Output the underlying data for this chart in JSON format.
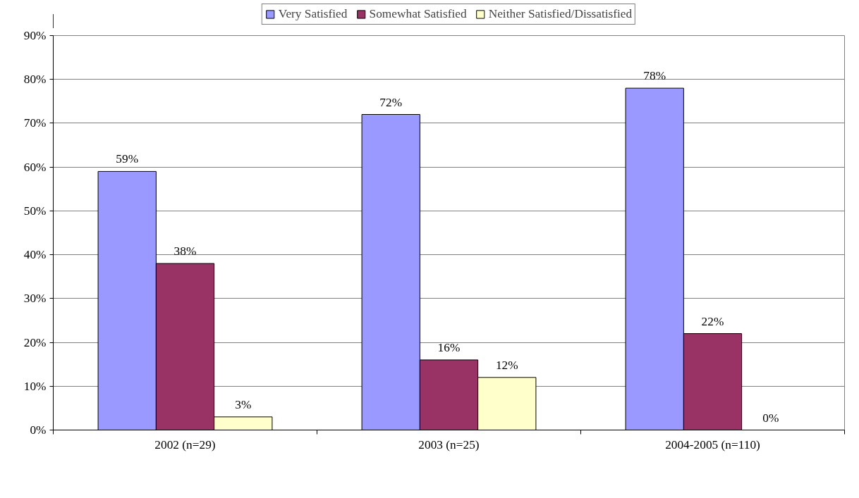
{
  "chart_data": {
    "type": "bar",
    "categories": [
      "2002 (n=29)",
      "2003 (n=25)",
      "2004-2005 (n=110)"
    ],
    "series": [
      {
        "name": "Very Satisfied",
        "color": "#9999ff",
        "values": [
          59,
          72,
          78
        ],
        "value_labels": [
          "59%",
          "72%",
          "78%"
        ]
      },
      {
        "name": "Somewhat Satisfied",
        "color": "#993366",
        "values": [
          38,
          16,
          22
        ],
        "value_labels": [
          "38%",
          "16%",
          "22%"
        ]
      },
      {
        "name": "Neither Satisfied/Dissatisfied",
        "color": "#ffffcc",
        "values": [
          3,
          12,
          0
        ],
        "value_labels": [
          "3%",
          "12%",
          "0%"
        ]
      }
    ],
    "ylim": [
      0,
      90
    ],
    "yticks": [
      {
        "value": 0,
        "label": "0%"
      },
      {
        "value": 10,
        "label": "10%"
      },
      {
        "value": 20,
        "label": "20%"
      },
      {
        "value": 30,
        "label": "30%"
      },
      {
        "value": 40,
        "label": "40%"
      },
      {
        "value": 50,
        "label": "50%"
      },
      {
        "value": 60,
        "label": "60%"
      },
      {
        "value": 70,
        "label": "70%"
      },
      {
        "value": 80,
        "label": "80%"
      },
      {
        "value": 90,
        "label": "90%"
      }
    ],
    "grid": "y",
    "legend": "top"
  }
}
